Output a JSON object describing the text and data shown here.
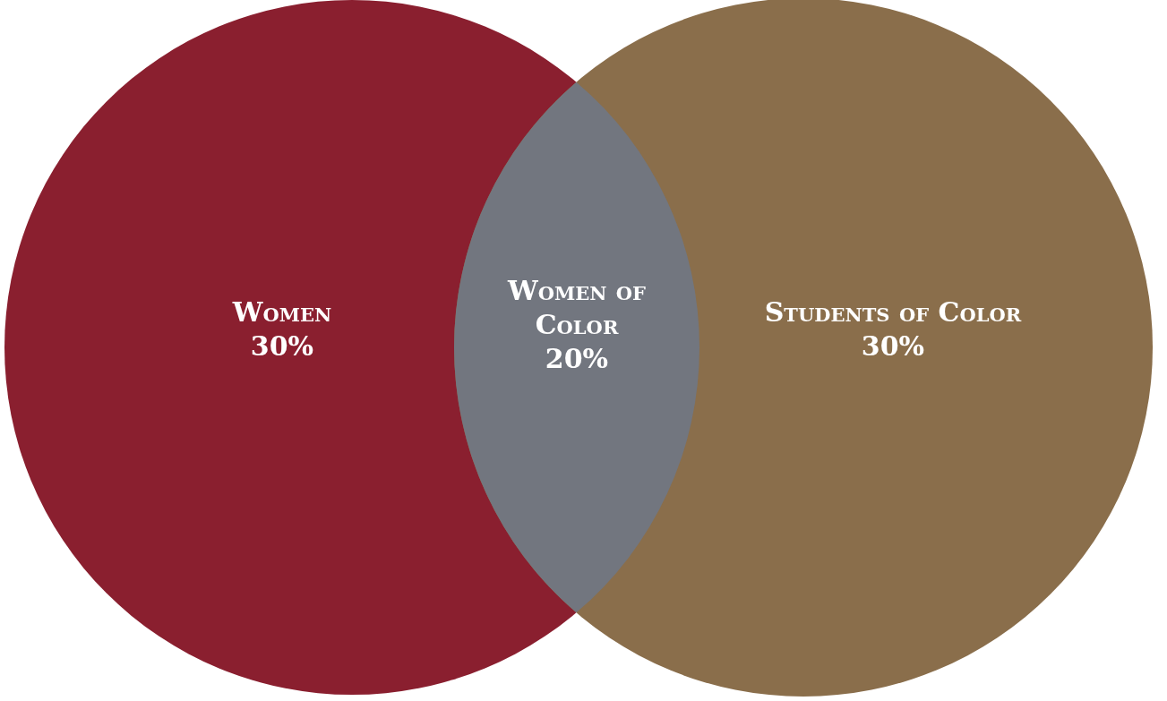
{
  "chart_data": {
    "type": "other",
    "categories": [
      "Women",
      "Women of Color",
      "Students of Color"
    ],
    "values": [
      30,
      20,
      30
    ],
    "value_labels": [
      "30%",
      "20%",
      "30%"
    ],
    "colors": [
      "#8a1f2f",
      "#72767f",
      "#8a6e4b"
    ]
  }
}
